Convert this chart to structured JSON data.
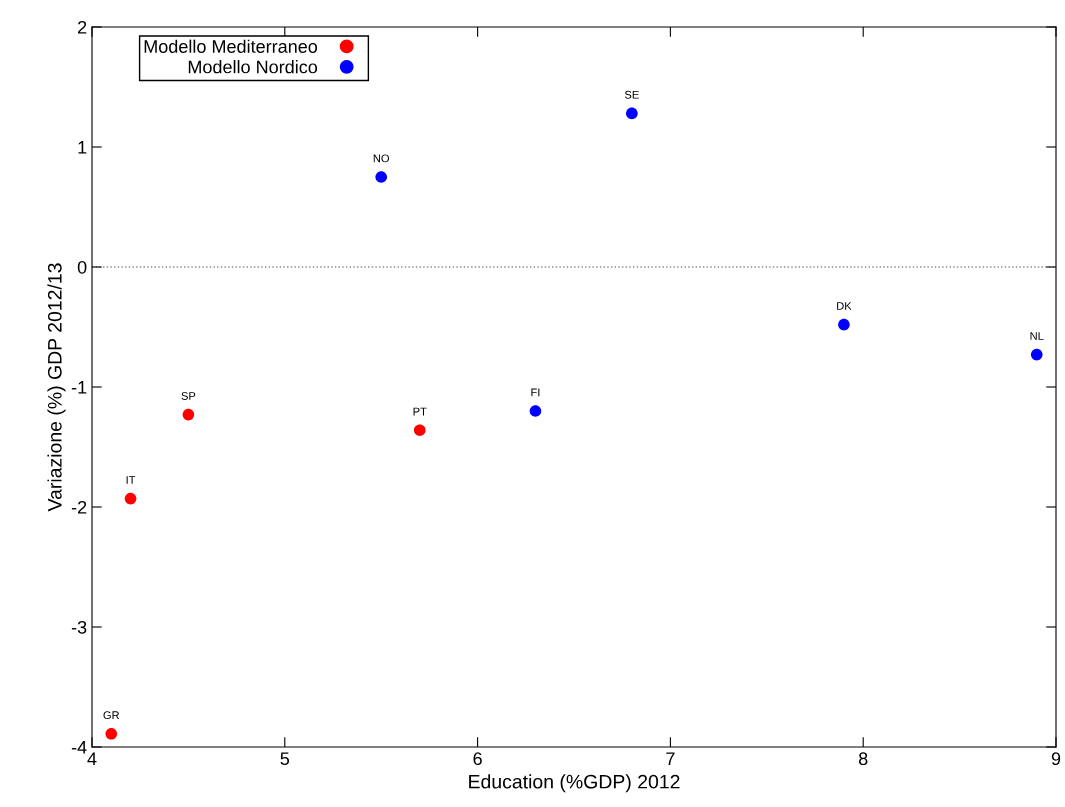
{
  "chart_data": {
    "type": "scatter",
    "xlabel": "Education (%GDP) 2012",
    "ylabel": "Variazione (%) GDP 2012/13",
    "xlim": [
      4,
      9
    ],
    "ylim": [
      -4,
      2
    ],
    "xticks": [
      4,
      5,
      6,
      7,
      8,
      9
    ],
    "yticks": [
      -4,
      -3,
      -2,
      -1,
      0,
      1,
      2
    ],
    "grid": false,
    "legend": "top left",
    "marker": "circle",
    "ref_lines": [
      {
        "axis": "y",
        "value": 0,
        "color": "#888888",
        "line_style": "dotted"
      }
    ],
    "series": [
      {
        "name": "Modello Mediterraneo",
        "color": "#ff0000",
        "x": [
          4.1,
          4.2,
          4.5,
          5.7
        ],
        "values": [
          -3.89,
          -1.93,
          -1.23,
          -1.36
        ]
      },
      {
        "name": "Modello Nordico",
        "color": "#0000ff",
        "x": [
          5.5,
          6.3,
          6.8,
          7.9,
          8.9
        ],
        "values": [
          0.75,
          -1.2,
          1.28,
          -0.48,
          -0.73
        ]
      }
    ],
    "annotations": [
      {
        "text": "GR",
        "x": 4.1,
        "y": -3.89
      },
      {
        "text": "IT",
        "x": 4.2,
        "y": -1.93
      },
      {
        "text": "SP",
        "x": 4.5,
        "y": -1.23
      },
      {
        "text": "PT",
        "x": 5.7,
        "y": -1.36
      },
      {
        "text": "NO",
        "x": 5.5,
        "y": 0.75
      },
      {
        "text": "FI",
        "x": 6.3,
        "y": -1.2
      },
      {
        "text": "SE",
        "x": 6.8,
        "y": 1.28
      },
      {
        "text": "DK",
        "x": 7.9,
        "y": -0.48
      },
      {
        "text": "NL",
        "x": 8.9,
        "y": -0.73
      }
    ]
  }
}
